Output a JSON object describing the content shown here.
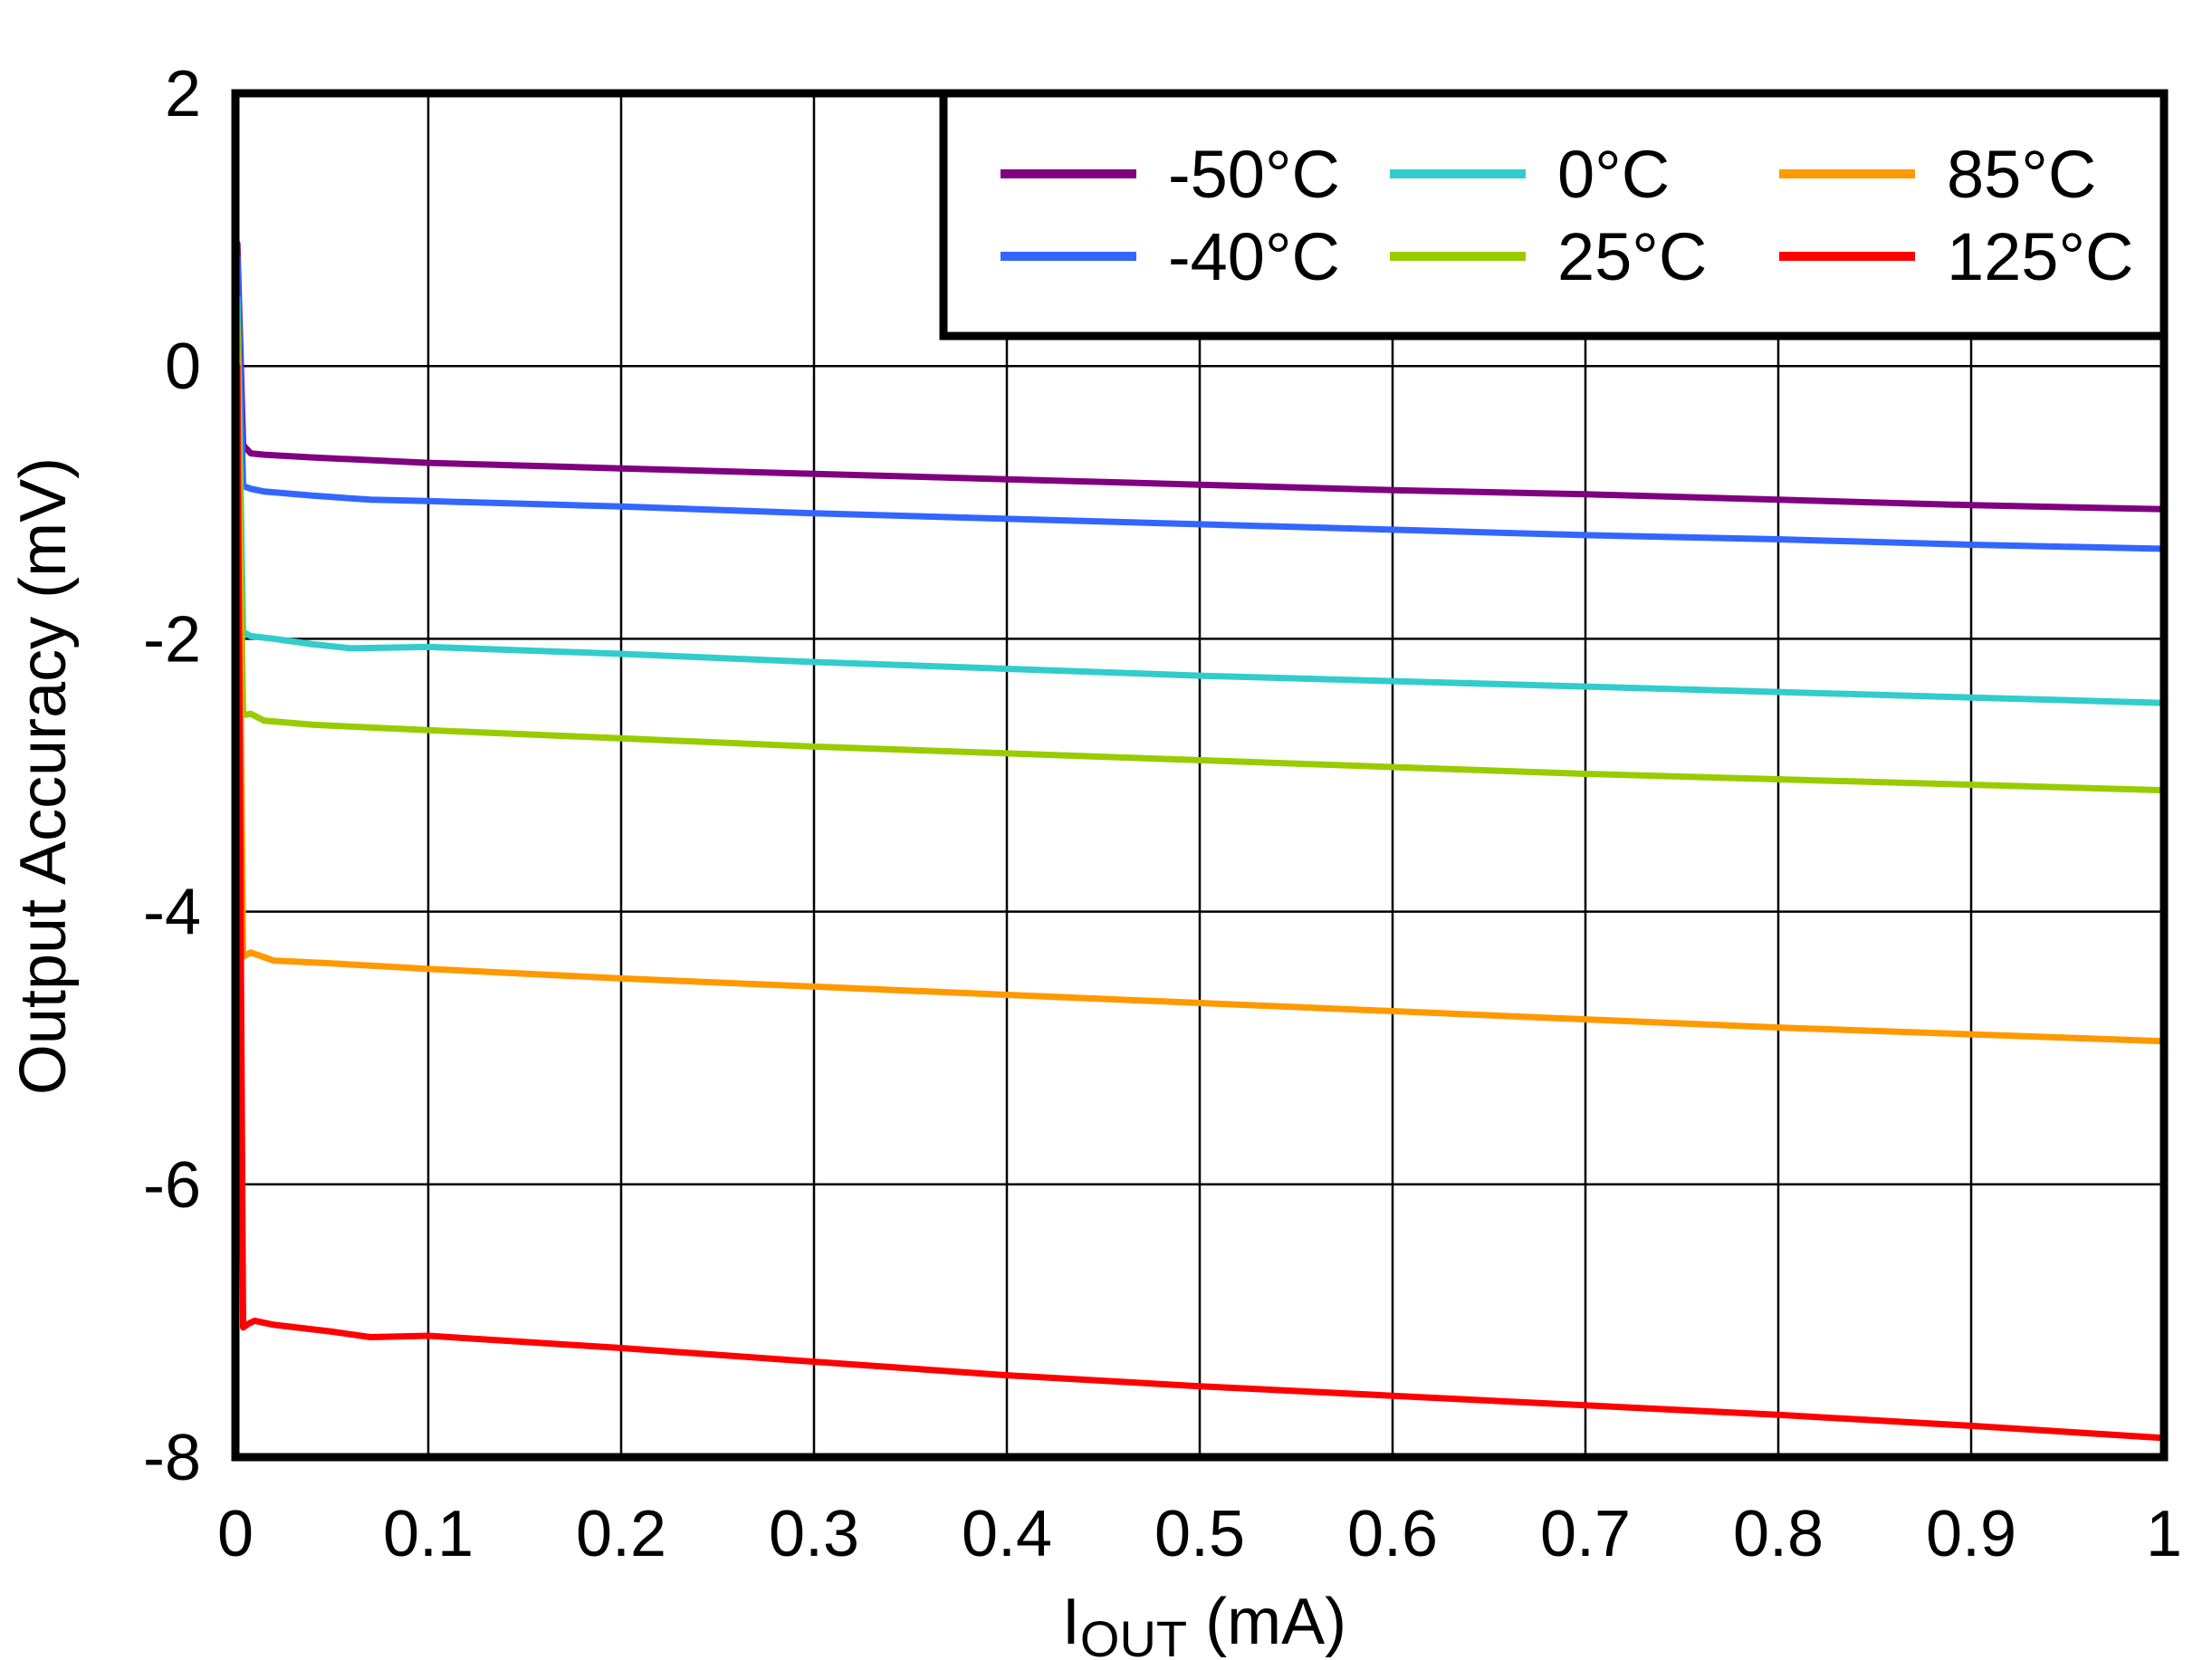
{
  "chart_data": {
    "type": "line",
    "xlabel_main": "I",
    "xlabel_sub": "OUT",
    "xlabel_unit": " (mA)",
    "ylabel": "Output Accuracy (mV)",
    "xlim": [
      0,
      1
    ],
    "ylim": [
      -8,
      2
    ],
    "xticks": [
      0,
      0.1,
      0.2,
      0.3,
      0.4,
      0.5,
      0.6,
      0.7,
      0.8,
      0.9,
      1
    ],
    "xtick_labels": [
      "0",
      "0.1",
      "0.2",
      "0.3",
      "0.4",
      "0.5",
      "0.6",
      "0.7",
      "0.8",
      "0.9",
      "1"
    ],
    "yticks": [
      2,
      0,
      -2,
      -4,
      -6,
      -8
    ],
    "ytick_labels": [
      "2",
      "0",
      "-2",
      "-4",
      "-6",
      "-8"
    ],
    "grid": true,
    "legend_position": "top-right",
    "series": [
      {
        "name": "-50°C",
        "color": "#800080",
        "x": [
          0.001,
          0.004,
          0.008,
          0.015,
          0.04,
          0.1,
          0.2,
          0.3,
          0.4,
          0.5,
          0.6,
          0.7,
          0.8,
          0.9,
          1.0
        ],
        "y": [
          0.9,
          -0.58,
          -0.64,
          -0.65,
          -0.67,
          -0.71,
          -0.75,
          -0.79,
          -0.83,
          -0.87,
          -0.91,
          -0.94,
          -0.98,
          -1.02,
          -1.05
        ]
      },
      {
        "name": "-40°C",
        "color": "#3366ff",
        "x": [
          0.001,
          0.004,
          0.008,
          0.015,
          0.04,
          0.07,
          0.1,
          0.2,
          0.3,
          0.4,
          0.5,
          0.6,
          0.7,
          0.8,
          0.9,
          1.0
        ],
        "y": [
          0.8,
          -0.88,
          -0.9,
          -0.92,
          -0.95,
          -0.98,
          -0.99,
          -1.03,
          -1.08,
          -1.12,
          -1.16,
          -1.2,
          -1.24,
          -1.27,
          -1.31,
          -1.34
        ]
      },
      {
        "name": "0°C",
        "color": "#33cccc",
        "x": [
          0.001,
          0.004,
          0.008,
          0.02,
          0.04,
          0.06,
          0.1,
          0.2,
          0.3,
          0.4,
          0.5,
          0.6,
          0.7,
          0.8,
          0.9,
          1.0
        ],
        "y": [
          0.5,
          -1.95,
          -1.98,
          -2.0,
          -2.04,
          -2.07,
          -2.06,
          -2.11,
          -2.17,
          -2.22,
          -2.27,
          -2.31,
          -2.35,
          -2.39,
          -2.43,
          -2.47
        ]
      },
      {
        "name": "25°C",
        "color": "#99cc00",
        "x": [
          0.001,
          0.004,
          0.008,
          0.015,
          0.04,
          0.1,
          0.2,
          0.3,
          0.4,
          0.5,
          0.6,
          0.7,
          0.8,
          0.9,
          1.0
        ],
        "y": [
          0.3,
          -2.56,
          -2.55,
          -2.6,
          -2.63,
          -2.67,
          -2.73,
          -2.79,
          -2.84,
          -2.89,
          -2.94,
          -2.99,
          -3.03,
          -3.07,
          -3.11
        ]
      },
      {
        "name": "85°C",
        "color": "#ff9900",
        "x": [
          0.001,
          0.004,
          0.008,
          0.02,
          0.05,
          0.1,
          0.2,
          0.3,
          0.4,
          0.5,
          0.6,
          0.7,
          0.8,
          0.9,
          1.0
        ],
        "y": [
          0.1,
          -4.33,
          -4.3,
          -4.36,
          -4.38,
          -4.42,
          -4.49,
          -4.55,
          -4.61,
          -4.67,
          -4.73,
          -4.79,
          -4.85,
          -4.9,
          -4.95
        ]
      },
      {
        "name": "125°C",
        "color": "#ff0000",
        "x": [
          0.001,
          0.004,
          0.007,
          0.01,
          0.02,
          0.05,
          0.07,
          0.1,
          0.2,
          0.3,
          0.4,
          0.5,
          0.6,
          0.7,
          0.8,
          0.9,
          1.0
        ],
        "y": [
          0.0,
          -7.05,
          -7.02,
          -7.0,
          -7.03,
          -7.08,
          -7.12,
          -7.11,
          -7.2,
          -7.3,
          -7.4,
          -7.48,
          -7.55,
          -7.62,
          -7.69,
          -7.77,
          -7.86
        ]
      }
    ]
  }
}
